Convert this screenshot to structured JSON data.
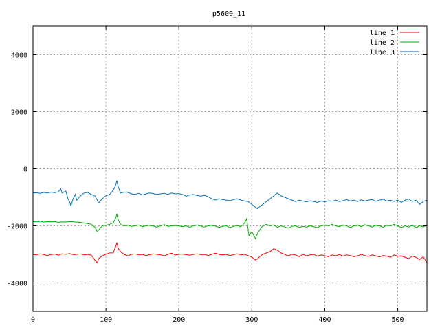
{
  "chart_data": {
    "type": "line",
    "title": "p5600_11",
    "xlabel": "",
    "ylabel": "",
    "xlim": [
      0,
      540
    ],
    "ylim": [
      -5000,
      5000
    ],
    "x_ticks": [
      0,
      100,
      200,
      300,
      400,
      500
    ],
    "y_ticks": [
      -4000,
      -2000,
      0,
      2000,
      4000
    ],
    "grid": true,
    "legend_position": "top-right",
    "series": [
      {
        "name": "line 1",
        "color": "#ff0000",
        "x": [
          0,
          5,
          10,
          15,
          20,
          25,
          30,
          35,
          40,
          45,
          50,
          55,
          60,
          65,
          70,
          75,
          80,
          85,
          88,
          90,
          95,
          100,
          105,
          110,
          113,
          115,
          117,
          120,
          125,
          130,
          135,
          140,
          145,
          150,
          155,
          160,
          165,
          170,
          175,
          180,
          185,
          190,
          195,
          200,
          205,
          210,
          215,
          220,
          225,
          230,
          235,
          240,
          245,
          250,
          255,
          260,
          265,
          270,
          275,
          280,
          285,
          290,
          295,
          300,
          305,
          308,
          312,
          315,
          320,
          325,
          330,
          335,
          340,
          345,
          350,
          355,
          360,
          365,
          370,
          375,
          380,
          385,
          390,
          395,
          400,
          405,
          410,
          415,
          420,
          425,
          430,
          435,
          440,
          445,
          450,
          455,
          460,
          465,
          470,
          475,
          480,
          485,
          490,
          495,
          500,
          505,
          510,
          515,
          520,
          525,
          530,
          535,
          540
        ],
        "y": [
          -3000,
          -3020,
          -2980,
          -3010,
          -3040,
          -3000,
          -2990,
          -3030,
          -2980,
          -3000,
          -2970,
          -3010,
          -3000,
          -2980,
          -3020,
          -3000,
          -3030,
          -3200,
          -3300,
          -3150,
          -3050,
          -3000,
          -2950,
          -2950,
          -2750,
          -2600,
          -2800,
          -2900,
          -3000,
          -3050,
          -3000,
          -2980,
          -3020,
          -3000,
          -3040,
          -3010,
          -2980,
          -3000,
          -3020,
          -3050,
          -3000,
          -2960,
          -3020,
          -3000,
          -2990,
          -3010,
          -3030,
          -3000,
          -2980,
          -3010,
          -3000,
          -3040,
          -3000,
          -2960,
          -3000,
          -3020,
          -3000,
          -3040,
          -3010,
          -2980,
          -3020,
          -3000,
          -3040,
          -3100,
          -3200,
          -3150,
          -3050,
          -3000,
          -2950,
          -2900,
          -2800,
          -2850,
          -2950,
          -3000,
          -3050,
          -3000,
          -3020,
          -3080,
          -3000,
          -3050,
          -3020,
          -3000,
          -3060,
          -3020,
          -3040,
          -3080,
          -3020,
          -3050,
          -3000,
          -3060,
          -3020,
          -3040,
          -3080,
          -3050,
          -3000,
          -3040,
          -3070,
          -3020,
          -3050,
          -3090,
          -3040,
          -3060,
          -3100,
          -3020,
          -3060,
          -3050,
          -3100,
          -3150,
          -3060,
          -3100,
          -3180,
          -3080,
          -3300
        ]
      },
      {
        "name": "line 2",
        "color": "#00b000",
        "x": [
          0,
          5,
          10,
          15,
          20,
          25,
          30,
          35,
          40,
          45,
          50,
          55,
          60,
          65,
          70,
          75,
          80,
          85,
          88,
          90,
          95,
          100,
          105,
          110,
          113,
          115,
          117,
          120,
          125,
          130,
          135,
          140,
          145,
          150,
          155,
          160,
          165,
          170,
          175,
          180,
          185,
          190,
          195,
          200,
          205,
          210,
          215,
          220,
          225,
          230,
          235,
          240,
          245,
          250,
          255,
          260,
          265,
          270,
          275,
          280,
          285,
          290,
          293,
          296,
          300,
          305,
          308,
          312,
          315,
          320,
          325,
          330,
          335,
          340,
          345,
          350,
          355,
          360,
          365,
          370,
          375,
          380,
          385,
          390,
          395,
          400,
          405,
          410,
          415,
          420,
          425,
          430,
          435,
          440,
          445,
          450,
          455,
          460,
          465,
          470,
          475,
          480,
          485,
          490,
          495,
          500,
          505,
          510,
          515,
          520,
          525,
          530,
          535,
          540
        ],
        "y": [
          -1850,
          -1860,
          -1840,
          -1870,
          -1850,
          -1860,
          -1850,
          -1880,
          -1860,
          -1870,
          -1850,
          -1860,
          -1870,
          -1880,
          -1900,
          -1920,
          -1950,
          -2050,
          -2200,
          -2150,
          -2000,
          -1980,
          -1950,
          -1900,
          -1750,
          -1600,
          -1800,
          -1950,
          -2000,
          -1980,
          -2020,
          -2000,
          -1970,
          -2030,
          -2000,
          -1980,
          -2010,
          -2040,
          -2000,
          -1960,
          -2020,
          -2000,
          -1990,
          -2000,
          -2030,
          -2000,
          -2050,
          -2000,
          -1970,
          -2010,
          -2040,
          -2000,
          -1980,
          -2010,
          -2050,
          -2020,
          -2000,
          -2060,
          -2020,
          -1990,
          -2030,
          -1900,
          -1750,
          -2350,
          -2200,
          -2450,
          -2250,
          -2100,
          -2000,
          -1950,
          -2000,
          -1970,
          -2050,
          -2000,
          -2040,
          -2080,
          -2020,
          -2000,
          -2060,
          -2020,
          -2040,
          -2000,
          -2030,
          -2060,
          -2000,
          -1970,
          -2000,
          -1950,
          -2000,
          -2030,
          -1970,
          -2000,
          -2060,
          -2000,
          -1980,
          -2030,
          -1960,
          -2000,
          -2040,
          -1980,
          -2000,
          -2050,
          -1980,
          -2000,
          -1950,
          -2000,
          -2060,
          -2000,
          -2040,
          -1980,
          -2060,
          -2000,
          -2040,
          -1980
        ]
      },
      {
        "name": "line 3",
        "color": "#0072bd",
        "x": [
          0,
          5,
          10,
          15,
          20,
          25,
          30,
          35,
          38,
          40,
          45,
          48,
          50,
          52,
          55,
          58,
          60,
          65,
          70,
          75,
          80,
          85,
          88,
          90,
          95,
          100,
          105,
          110,
          113,
          115,
          117,
          120,
          125,
          130,
          135,
          140,
          145,
          150,
          155,
          160,
          165,
          170,
          175,
          180,
          185,
          190,
          195,
          200,
          205,
          210,
          215,
          220,
          225,
          230,
          235,
          240,
          245,
          250,
          255,
          260,
          265,
          270,
          275,
          280,
          285,
          290,
          295,
          300,
          305,
          308,
          312,
          315,
          320,
          325,
          330,
          335,
          340,
          345,
          350,
          355,
          360,
          365,
          370,
          375,
          380,
          385,
          390,
          395,
          400,
          405,
          410,
          415,
          420,
          425,
          430,
          435,
          440,
          445,
          450,
          455,
          460,
          465,
          470,
          475,
          480,
          485,
          490,
          495,
          500,
          505,
          510,
          515,
          520,
          525,
          530,
          535,
          540
        ],
        "y": [
          -850,
          -840,
          -860,
          -830,
          -850,
          -820,
          -840,
          -800,
          -700,
          -850,
          -780,
          -1050,
          -1150,
          -1300,
          -1050,
          -900,
          -1100,
          -950,
          -850,
          -830,
          -900,
          -950,
          -1100,
          -1200,
          -1050,
          -950,
          -900,
          -750,
          -600,
          -420,
          -650,
          -850,
          -820,
          -830,
          -880,
          -900,
          -860,
          -920,
          -880,
          -850,
          -870,
          -900,
          -880,
          -860,
          -900,
          -850,
          -880,
          -870,
          -900,
          -960,
          -920,
          -900,
          -940,
          -960,
          -930,
          -980,
          -1050,
          -1100,
          -1050,
          -1080,
          -1100,
          -1120,
          -1080,
          -1050,
          -1100,
          -1130,
          -1150,
          -1250,
          -1350,
          -1400,
          -1300,
          -1250,
          -1150,
          -1050,
          -950,
          -850,
          -950,
          -1000,
          -1050,
          -1100,
          -1150,
          -1100,
          -1130,
          -1160,
          -1120,
          -1150,
          -1180,
          -1130,
          -1160,
          -1120,
          -1140,
          -1100,
          -1150,
          -1120,
          -1080,
          -1130,
          -1100,
          -1150,
          -1090,
          -1130,
          -1100,
          -1080,
          -1140,
          -1100,
          -1070,
          -1130,
          -1100,
          -1150,
          -1100,
          -1180,
          -1100,
          -1060,
          -1150,
          -1100,
          -1250,
          -1150,
          -1100
        ]
      }
    ]
  }
}
